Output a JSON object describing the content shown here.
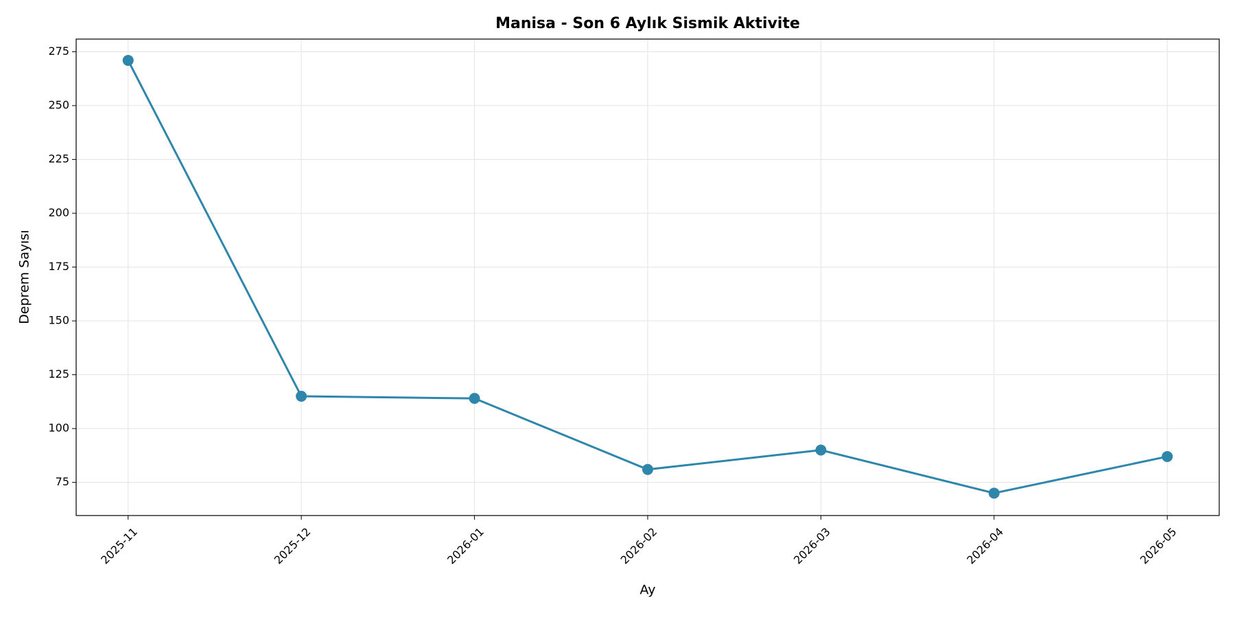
{
  "chart_data": {
    "type": "line",
    "title": "Manisa - Son 6 Aylık Sismik Aktivite",
    "x_label": "Ay",
    "y_label": "Deprem Sayısı",
    "categories": [
      "2025-11",
      "2025-12",
      "2026-01",
      "2026-02",
      "2026-03",
      "2026-04",
      "2026-05"
    ],
    "series": [
      {
        "name": "Deprem Sayısı",
        "color": "#2e86ab",
        "values": [
          271,
          115,
          114,
          81,
          90,
          70,
          87
        ]
      }
    ],
    "ylim": [
      59.6,
      280.9
    ],
    "yticks": [
      75,
      100,
      125,
      150,
      175,
      200,
      225,
      250,
      275
    ],
    "grid": true
  }
}
